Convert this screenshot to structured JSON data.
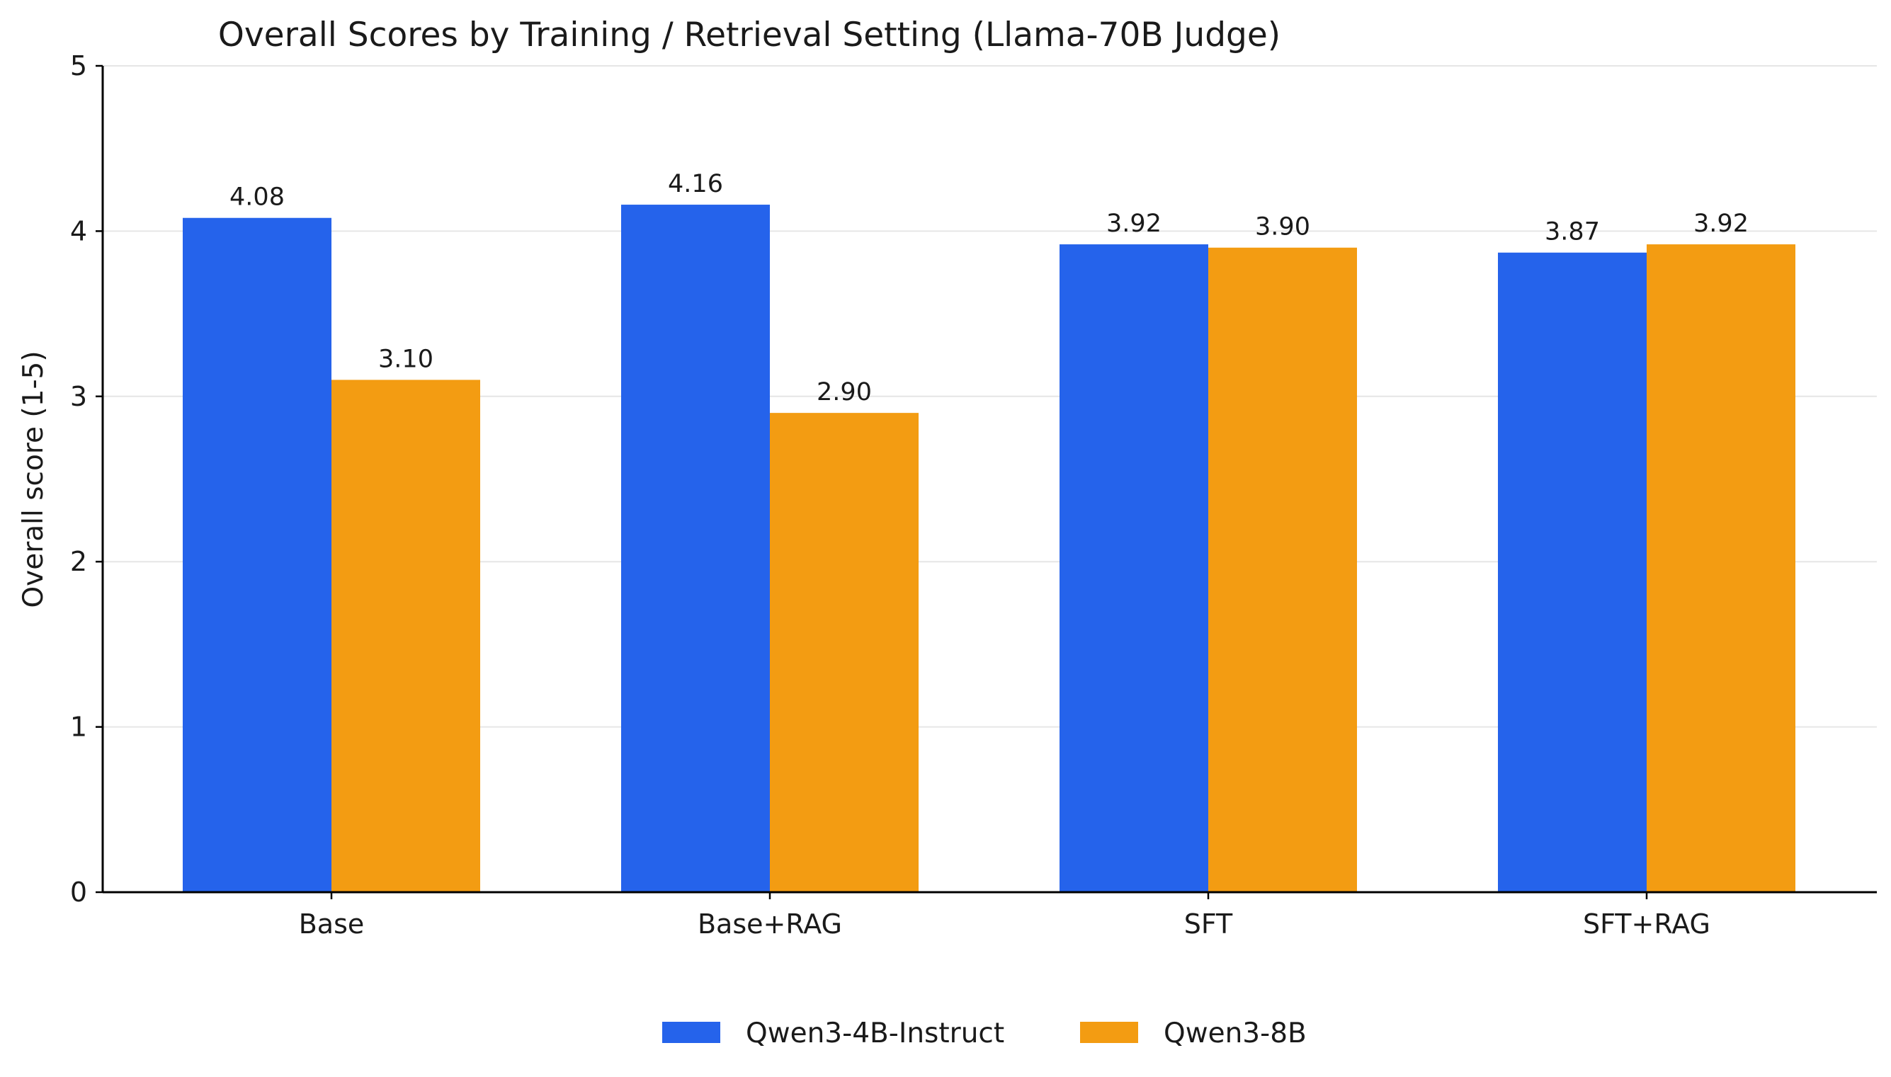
{
  "chart_data": {
    "type": "bar",
    "title": "Overall Scores by Training / Retrieval Setting (Llama-70B Judge)",
    "xlabel": "",
    "ylabel": "Overall score (1-5)",
    "ylim": [
      0,
      5
    ],
    "yticks": [
      0,
      1,
      2,
      3,
      4,
      5
    ],
    "grid": "horizontal",
    "legend_position": "bottom-center",
    "categories": [
      "Base",
      "Base+RAG",
      "SFT",
      "SFT+RAG"
    ],
    "series": [
      {
        "name": "Qwen3-4B-Instruct",
        "color": "#2563EB",
        "values": [
          4.08,
          4.16,
          3.92,
          3.87
        ],
        "labels": [
          "4.08",
          "4.16",
          "3.92",
          "3.87"
        ]
      },
      {
        "name": "Qwen3-8B",
        "color": "#F39C12",
        "values": [
          3.1,
          2.9,
          3.9,
          3.92
        ],
        "labels": [
          "3.10",
          "2.90",
          "3.90",
          "3.92"
        ]
      }
    ]
  }
}
